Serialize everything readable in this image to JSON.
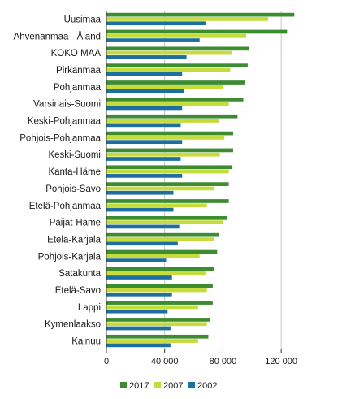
{
  "chart_data": {
    "type": "bar",
    "orientation": "horizontal",
    "categories": [
      "Uusimaa",
      "Ahvenanmaa - Åland",
      "KOKO MAA",
      "Pirkanmaa",
      "Pohjanmaa",
      "Varsinais-Suomi",
      "Keski-Pohjanmaa",
      "Pohjois-Pohjanmaa",
      "Keski-Suomi",
      "Kanta-Häme",
      "Pohjois-Savo",
      "Etelä-Pohjanmaa",
      "Päijät-Häme",
      "Etelä-Karjala",
      "Pohjois-Karjala",
      "Satakunta",
      "Etelä-Savo",
      "Lappi",
      "Kymenlaakso",
      "Kainuu"
    ],
    "series": [
      {
        "name": "2017",
        "color": "#3d8c2f",
        "values": [
          129000,
          124000,
          98000,
          97000,
          95000,
          94000,
          90000,
          87000,
          87000,
          86000,
          84000,
          84000,
          83000,
          77000,
          76000,
          74000,
          73000,
          73000,
          71000,
          70000
        ]
      },
      {
        "name": "2007",
        "color": "#c5dc3c",
        "values": [
          111000,
          96000,
          86000,
          85000,
          80000,
          84000,
          77000,
          81000,
          78000,
          84000,
          74000,
          69000,
          80000,
          74000,
          64000,
          68000,
          69000,
          63000,
          69000,
          63000
        ]
      },
      {
        "name": "2002",
        "color": "#1e6fa0",
        "values": [
          68000,
          64000,
          55000,
          52000,
          53000,
          52000,
          51000,
          52000,
          51000,
          52000,
          46000,
          46000,
          50000,
          49000,
          41000,
          45000,
          45000,
          42000,
          44000,
          44000
        ]
      }
    ],
    "xlim": [
      0,
      140000
    ],
    "xticks": [
      0,
      40000,
      80000,
      120000
    ],
    "xtick_labels": [
      "0",
      "40 000",
      "80 000",
      "120 000"
    ],
    "grid": true,
    "legend_position": "bottom"
  }
}
